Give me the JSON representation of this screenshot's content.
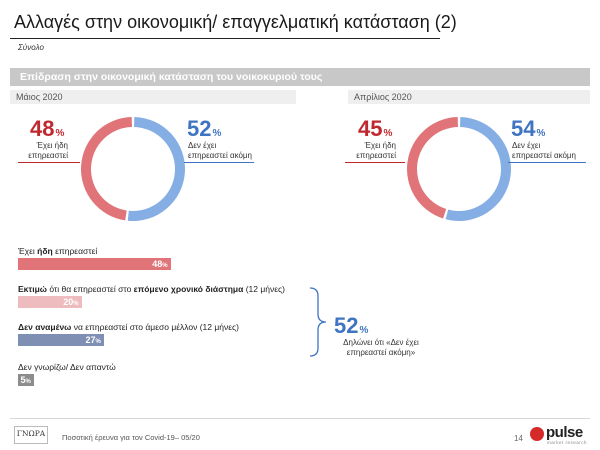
{
  "header": {
    "title": "Αλλαγές στην οικονομική/ επαγγελματική κατάσταση (2)",
    "subtitle": "Σύνολο"
  },
  "section": {
    "title": "Επίδραση στην οικονομική κατάσταση του νοικοκυριού τους"
  },
  "colors": {
    "affected": "#e07479",
    "not_affected": "#85aee4",
    "bar_future": "#eebcbe",
    "bar_not_expect": "#7f8fb3",
    "bar_dk": "#8c8c8c"
  },
  "chart_data": [
    {
      "type": "pie",
      "title": "Μάιος 2020",
      "slices": [
        {
          "label": "Έχει ήδη επηρεαστεί",
          "value": 48,
          "display": "48"
        },
        {
          "label": "Δεν έχει επηρεαστεί ακόμη",
          "value": 52,
          "display": "52"
        }
      ],
      "affected_label_lines": [
        "Έχει ήδη",
        "επηρεαστεί"
      ],
      "not_affected_label_lines": [
        "Δεν έχει",
        "επηρεαστεί ακόμη"
      ]
    },
    {
      "type": "pie",
      "title": "Απρίλιος 2020",
      "slices": [
        {
          "label": "Έχει ήδη επηρεαστεί",
          "value": 45,
          "display": "45"
        },
        {
          "label": "Δεν έχει επηρεαστεί ακόμη",
          "value": 54,
          "display": "54"
        }
      ],
      "affected_label_lines": [
        "Έχει ήδη",
        "επηρεαστεί"
      ],
      "not_affected_label_lines": [
        "Δεν έχει",
        "επηρεαστεί ακόμη"
      ]
    },
    {
      "type": "bar",
      "orientation": "horizontal",
      "xlim": [
        0,
        100
      ],
      "items": [
        {
          "label_parts": [
            {
              "text": "Έχει "
            },
            {
              "text": "ήδη",
              "bold": true
            },
            {
              "text": " επηρεαστεί"
            }
          ],
          "value": 48,
          "display": "48"
        },
        {
          "label_parts": [
            {
              "text": "Εκτιμώ",
              "bold": true
            },
            {
              "text": " ότι θα επηρεαστεί στο "
            },
            {
              "text": "επόμενο χρονικό διάστημα",
              "bold": true
            },
            {
              "text": " (12 μήνες)"
            }
          ],
          "value": 20,
          "display": "20"
        },
        {
          "label_parts": [
            {
              "text": "Δεν αναμένω",
              "bold": true
            },
            {
              "text": " να επηρεαστεί στο άμεσο μέλλον (12 μήνες)"
            }
          ],
          "value": 27,
          "display": "27"
        },
        {
          "label_parts": [
            {
              "text": "Δεν γνωρίζω/ Δεν απαντώ"
            }
          ],
          "value": 5,
          "display": "5"
        }
      ]
    }
  ],
  "summary": {
    "value": "52",
    "label_lines": [
      "Δηλώνει ότι «Δεν έχει",
      "επηρεαστεί ακόμη»"
    ]
  },
  "footer": {
    "logo_left": "ΓΝΩΡΑ",
    "text": "Ποσοτική έρευνα για τον Covid-19– 05/20",
    "page": "14",
    "logo_right": "pulse",
    "logo_right_sub": "market research"
  }
}
